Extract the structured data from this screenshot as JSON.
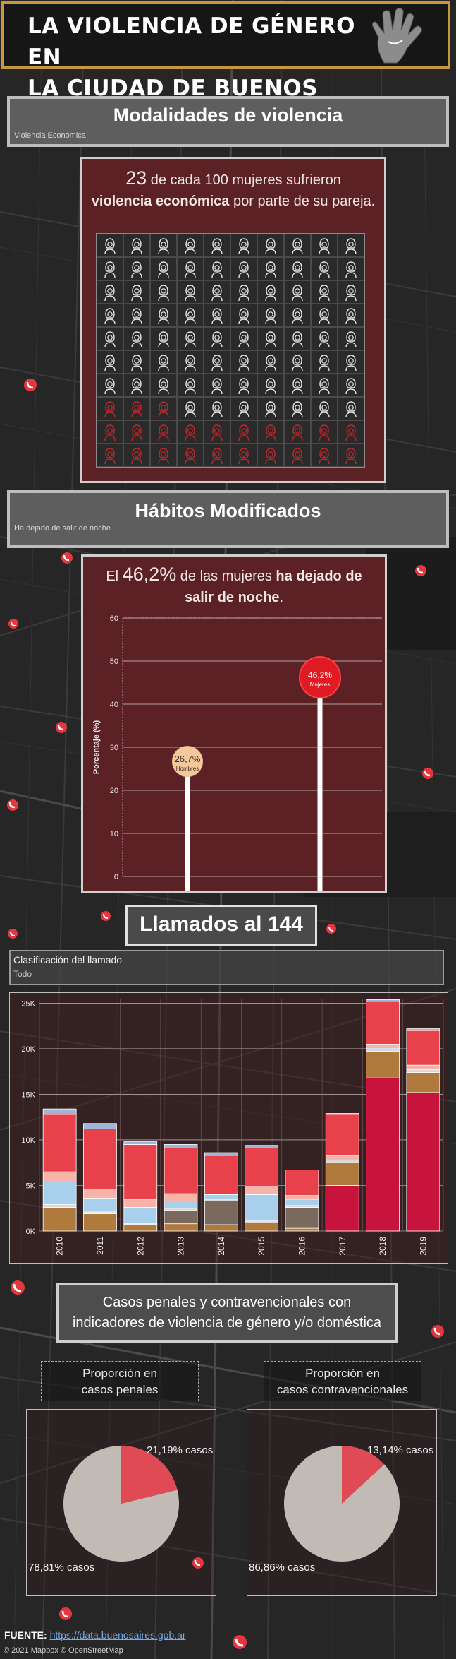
{
  "header": {
    "title_line1": "LA VIOLENCIA DE GÉNERO EN",
    "title_line2": "LA CIUDAD DE BUENOS AIRES",
    "icon": "hand-icon"
  },
  "modalidades": {
    "title": "Modalidades de violencia",
    "filter_value": "Violencia Económica",
    "stat_number": "23",
    "stat_text_pre": " de cada 100 mujeres sufrieron",
    "stat_bold": "violencia económica",
    "stat_text_post": " por parte de su pareja.",
    "grid_total": 100,
    "grid_highlight": 23,
    "icon": "woman-icon",
    "colors": {
      "normal": "#e8e8e8",
      "highlight": "#c0282d"
    }
  },
  "habitos": {
    "title": "Hábitos Modificados",
    "filter_value": "Ha dejado de salir de noche",
    "stat_pre": "El ",
    "stat_number": "46,2%",
    "stat_mid": " de las mujeres ",
    "stat_bold": "ha dejado de salir de noche",
    "stat_post": ".",
    "chart_data": {
      "type": "lollipop",
      "ylabel": "Porcentaje (%)",
      "ylim": [
        0,
        60
      ],
      "yticks": [
        "0",
        "10",
        "20",
        "30",
        "40",
        "50",
        "60"
      ],
      "series": [
        {
          "name": "Hombres",
          "value": 26.7,
          "label": "26,7%",
          "color": "#f3c89a"
        },
        {
          "name": "Mujeres",
          "value": 46.2,
          "label": "46,2%",
          "color": "#e01b24"
        }
      ]
    }
  },
  "llamados": {
    "title": "Llamados al 144",
    "filter_label": "Clasificación del llamado",
    "filter_value": "Todo",
    "chart_data": {
      "type": "bar",
      "stacked": true,
      "categories": [
        "2010",
        "2011",
        "2012",
        "2013",
        "2014",
        "2015",
        "2016",
        "2017",
        "2018",
        "2019"
      ],
      "yticks": [
        "0K",
        "5K",
        "10K",
        "15K",
        "20K",
        "25K"
      ],
      "ylim": [
        0,
        25500
      ],
      "grid": true,
      "series": [
        {
          "color": "#c8143c",
          "values": [
            0,
            0,
            0,
            0,
            0,
            0,
            0,
            5000,
            16800,
            15200
          ]
        },
        {
          "color": "#b07a3c",
          "values": [
            2600,
            1900,
            700,
            800,
            700,
            900,
            300,
            2500,
            2900,
            2200
          ]
        },
        {
          "color": "#7a6a5e",
          "values": [
            0,
            0,
            0,
            1500,
            2600,
            0,
            2300,
            0,
            0,
            0
          ]
        },
        {
          "color": "#d8d8d8",
          "values": [
            300,
            200,
            100,
            200,
            200,
            200,
            200,
            300,
            300,
            300
          ]
        },
        {
          "color": "#a8d0ec",
          "values": [
            2500,
            1500,
            1800,
            800,
            500,
            2900,
            700,
            0,
            200,
            0
          ]
        },
        {
          "color": "#f7b3a8",
          "values": [
            1100,
            1000,
            900,
            800,
            0,
            900,
            400,
            500,
            300,
            500
          ]
        },
        {
          "color": "#e8414c",
          "values": [
            6300,
            6600,
            6000,
            5000,
            4300,
            4200,
            2800,
            4500,
            4700,
            3800
          ]
        },
        {
          "color": "#9fb6d8",
          "values": [
            600,
            600,
            300,
            400,
            300,
            300,
            0,
            100,
            200,
            200
          ]
        }
      ]
    }
  },
  "casos": {
    "title_line1": "Casos penales y contravencionales con",
    "title_line2": "indicadores de violencia de género y/o doméstica",
    "panels": [
      {
        "header_line1": "Proporción en",
        "header_line2": "casos penales",
        "chart_data": {
          "type": "pie",
          "slices": [
            {
              "value": 21.19,
              "label": "21,19% casos",
              "color": "#e04a55"
            },
            {
              "value": 78.81,
              "label": "78,81% casos",
              "color": "#c2bab5"
            }
          ]
        }
      },
      {
        "header_line1": "Proporción en",
        "header_line2": "casos contravencionales",
        "chart_data": {
          "type": "pie",
          "slices": [
            {
              "value": 13.14,
              "label": "13,14% casos",
              "color": "#e04a55"
            },
            {
              "value": 86.86,
              "label": "86,86% casos",
              "color": "#c2bab5"
            }
          ]
        }
      }
    ]
  },
  "footer": {
    "source_label": "FUENTE:",
    "source_link": "https://data.buenosaires.gob.ar",
    "copyright": "© 2021 Mapbox © OpenStreetMap"
  },
  "colors": {
    "background": "#262626",
    "header_border": "#c8963c",
    "panel_red": "#5c2125",
    "accent_red": "#c0282d"
  }
}
